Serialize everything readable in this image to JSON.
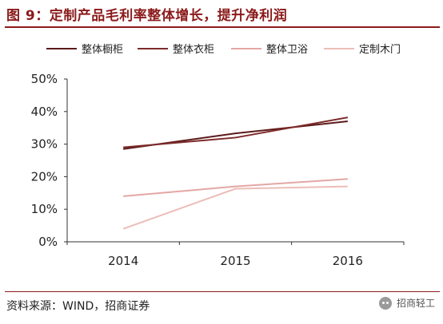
{
  "figure": {
    "title": "图 9：定制产品毛利率整体增长，提升净利润",
    "source": "资料来源：WIND，招商证券",
    "watermark": "招商轻工"
  },
  "chart_data": {
    "type": "line",
    "title": "",
    "xlabel": "",
    "ylabel": "",
    "x": [
      "2014",
      "2015",
      "2016"
    ],
    "ylim": [
      0,
      50
    ],
    "yticks": [
      "0%",
      "10%",
      "20%",
      "30%",
      "40%",
      "50%"
    ],
    "grid": false,
    "legend_position": "top",
    "series": [
      {
        "name": "整体橱柜",
        "values": [
          28.5,
          33.3,
          37.0
        ],
        "color": "#5C1A1A"
      },
      {
        "name": "整体衣柜",
        "values": [
          29.0,
          32.0,
          38.2
        ],
        "color": "#7E2A2A"
      },
      {
        "name": "整体卫浴",
        "values": [
          14.0,
          17.0,
          19.3
        ],
        "color": "#E3A7A3"
      },
      {
        "name": "定制木门",
        "values": [
          4.0,
          16.3,
          17.0
        ],
        "color": "#ECBDB8"
      }
    ]
  }
}
